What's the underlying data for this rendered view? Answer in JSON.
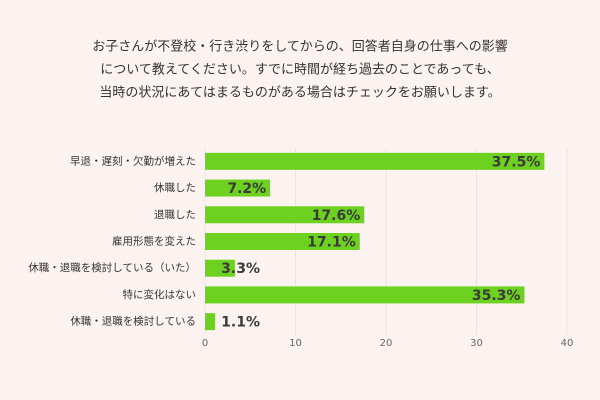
{
  "chart_data": {
    "type": "bar",
    "orientation": "horizontal",
    "title": [
      "お子さんが不登校・行き渋りをしてからの、回答者自身の仕事への影響",
      "について教えてください。すでに時間が経ち過去のことであっても、",
      "当時の状況にあてはまるものがある場合はチェックをお願いします。"
    ],
    "categories": [
      "早退・遅刻・欠勤が増えた",
      "休職した",
      "退職した",
      "雇用形態を変えた",
      "休職・退職を検討している（いた）",
      "特に変化はない",
      "休職・退職を検討している"
    ],
    "values": [
      37.5,
      7.2,
      17.6,
      17.1,
      3.3,
      35.3,
      1.1
    ],
    "value_labels": [
      "37.5%",
      "7.2%",
      "17.6%",
      "17.1%",
      "3.3%",
      "35.3%",
      "1.1%"
    ],
    "color": "#6dd11f",
    "xlim": [
      0,
      40
    ],
    "xticks": [
      0,
      10,
      20,
      30,
      40
    ],
    "grid": true
  }
}
